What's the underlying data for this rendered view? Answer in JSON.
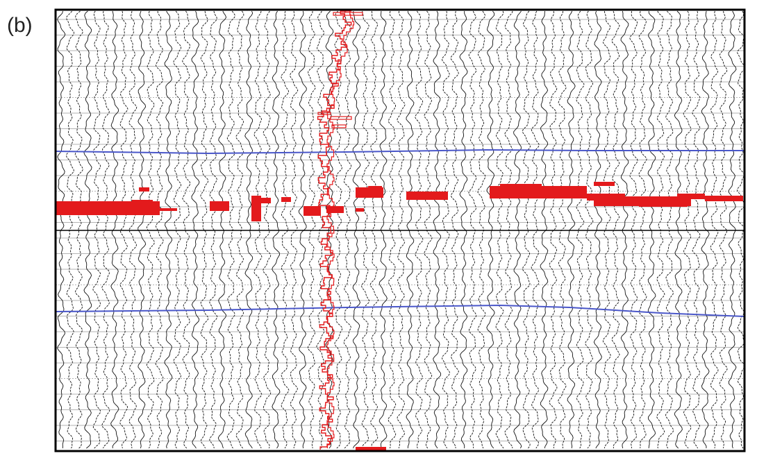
{
  "panel": {
    "label": "(b)"
  },
  "colors": {
    "background": "#ffffff",
    "frame": "#000000",
    "grid": "#9a9a9a",
    "traces": "#111111",
    "well_log": "#e31a1c",
    "horizons": "#4a57c9",
    "anomaly": "#e31a1c"
  },
  "display": {
    "trace_style": "wiggle",
    "gridlines": true,
    "frame": true
  }
}
